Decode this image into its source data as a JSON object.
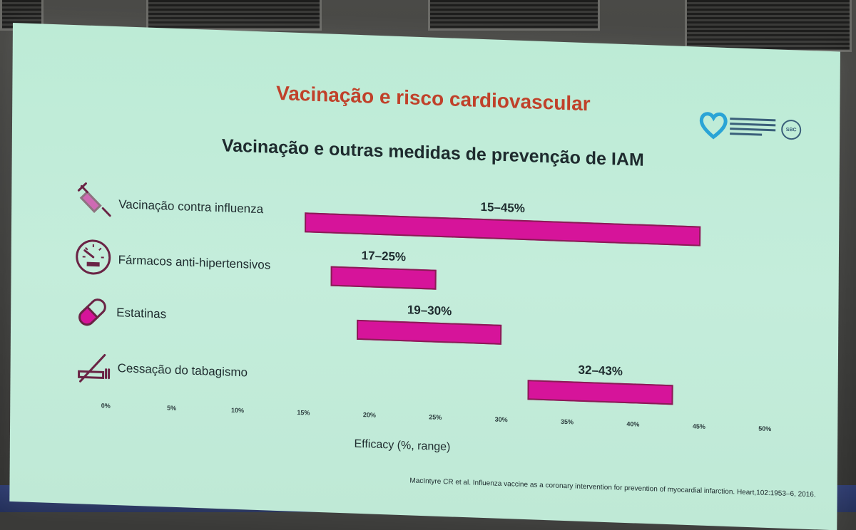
{
  "slide": {
    "title": "Vacinação e risco cardiovascular",
    "subtitle": "Vacinação e outras medidas de prevenção de IAM",
    "citation": "MacIntyre CR et al. Influenza vaccine as a coronary intervention for prevention of myocardial infarction. Heart,102:1953–6, 2016."
  },
  "colors": {
    "bar": "#d6149a",
    "title": "#c0412a",
    "background": "#c4eddb"
  },
  "chart_data": {
    "type": "bar",
    "orientation": "horizontal-range",
    "xlabel": "Efficacy (%, range)",
    "xlim": [
      0,
      50
    ],
    "x_ticks": [
      "0%",
      "5%",
      "10%",
      "15%",
      "20%",
      "25%",
      "30%",
      "35%",
      "40%",
      "45%",
      "50%"
    ],
    "categories": [
      {
        "label": "Vacinação contra influenza",
        "icon": "syringe-icon",
        "low": 15,
        "high": 45,
        "range_label": "15–45%"
      },
      {
        "label": "Fármacos anti-hipertensivos",
        "icon": "gauge-icon",
        "low": 17,
        "high": 25,
        "range_label": "17–25%"
      },
      {
        "label": "Estatinas",
        "icon": "pill-icon",
        "low": 19,
        "high": 30,
        "range_label": "19–30%"
      },
      {
        "label": "Cessação do tabagismo",
        "icon": "no-smoking-icon",
        "low": 32,
        "high": 43,
        "range_label": "32–43%"
      }
    ],
    "grid": false,
    "legend": "none"
  }
}
